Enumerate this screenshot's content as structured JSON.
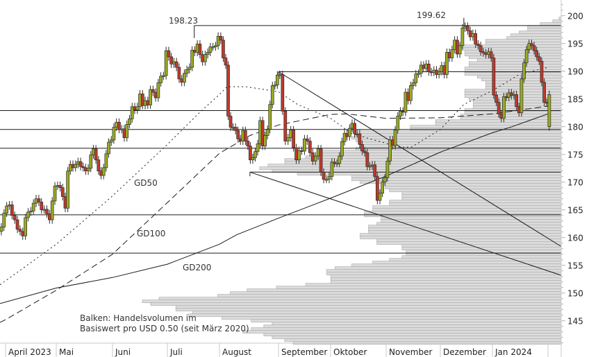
{
  "chart_data": {
    "type": "candlestick",
    "title": "",
    "y_axis": {
      "ticks": [
        145,
        150,
        155,
        160,
        165,
        170,
        175,
        180,
        185,
        190,
        195,
        200
      ],
      "tick_labels": [
        "145",
        "150",
        "155",
        "160",
        "165",
        "170",
        "175",
        "180",
        "185",
        "190",
        "195",
        "200"
      ],
      "range": [
        141,
        202.8
      ],
      "position": "right"
    },
    "x_axis": {
      "months": [
        {
          "label": "April 2023",
          "start": "2023-04-01"
        },
        {
          "label": "Mai",
          "start": "2023-05-01"
        },
        {
          "label": "Juni",
          "start": "2023-06-01"
        },
        {
          "label": "Juli",
          "start": "2023-07-01"
        },
        {
          "label": "August",
          "start": "2023-08-01"
        },
        {
          "label": "September",
          "start": "2023-09-01"
        },
        {
          "label": "Oktober",
          "start": "2023-10-01"
        },
        {
          "label": "November",
          "start": "2023-11-01"
        },
        {
          "label": "Dezember",
          "start": "2023-12-01"
        },
        {
          "label": "Jan 2024",
          "start": "2024-01-01"
        },
        {
          "label": "",
          "start": "2024-02-01"
        }
      ]
    },
    "candles_by_month": [
      {
        "month": "2023-04",
        "closes": [
          161.9,
          164.4,
          165.7,
          165.9,
          164.0,
          163.2,
          161.5,
          161.1,
          160.3,
          163.6,
          164.6,
          164.8,
          166.2,
          167.0,
          166.4,
          165.0,
          165.1,
          164.3,
          163.2,
          166.6,
          169.3
        ]
      },
      {
        "month": "2023-05",
        "closes": [
          169.4,
          169.0,
          167.4,
          165.3,
          172.0,
          173.2,
          172.6,
          173.2,
          173.7,
          172.8,
          172.6,
          172.0,
          172.5,
          174.9,
          176.0,
          174.0,
          172.0,
          171.2,
          172.6,
          175.1,
          177.2,
          177.6
        ]
      },
      {
        "month": "2023-06",
        "closes": [
          179.9,
          180.8,
          179.5,
          179.6,
          178.0,
          180.4,
          181.4,
          183.6,
          183.0,
          183.6,
          185.9,
          183.8,
          184.7,
          183.9,
          186.7,
          186.2,
          185.2,
          187.9,
          189.1,
          189.2,
          193.7
        ]
      },
      {
        "month": "2023-07",
        "closes": [
          192.6,
          191.3,
          191.7,
          190.7,
          188.6,
          188.0,
          189.6,
          190.3,
          190.7,
          193.8,
          193.4,
          194.9,
          193.0,
          191.7,
          193.0,
          193.4,
          194.4,
          194.4,
          194.6,
          196.3
        ]
      },
      {
        "month": "2023-08",
        "closes": [
          195.6,
          192.4,
          191.1,
          181.9,
          179.9,
          179.9,
          179.3,
          177.8,
          177.4,
          179.3,
          177.4,
          176.5,
          174.0,
          174.4,
          175.5,
          176.9,
          181.1,
          176.5,
          178.4,
          179.5,
          184.0,
          187.4,
          187.5,
          189.3
        ]
      },
      {
        "month": "2023-09",
        "closes": [
          189.4,
          182.8,
          177.4,
          178.0,
          179.4,
          176.2,
          174.0,
          175.7,
          175.6,
          177.8,
          177.4,
          175.3,
          173.8,
          174.7,
          176.0,
          171.8,
          170.5,
          170.5,
          171.0
        ]
      },
      {
        "month": "2023-10",
        "closes": [
          173.6,
          173.4,
          173.4,
          174.7,
          177.3,
          178.8,
          178.2,
          179.7,
          180.6,
          178.7,
          178.7,
          176.8,
          175.6,
          175.3,
          172.8,
          172.9,
          173.1,
          171.0,
          166.7,
          168.0,
          170.0,
          170.8
        ]
      },
      {
        "month": "2023-11",
        "closes": [
          173.8,
          177.6,
          176.6,
          179.4,
          181.9,
          182.8,
          182.6,
          186.2,
          184.7,
          187.4,
          187.9,
          189.5,
          189.6,
          191.1,
          190.5,
          191.3,
          189.9,
          189.8,
          190.2,
          189.4,
          189.9
        ]
      },
      {
        "month": "2023-12",
        "closes": [
          191.0,
          189.4,
          193.4,
          192.4,
          193.9,
          195.6,
          193.1,
          194.6,
          197.8,
          198.1,
          197.3,
          196.2,
          196.8,
          194.9,
          194.6,
          193.5,
          193.3,
          193.0,
          193.5,
          192.4
        ]
      },
      {
        "month": "2024-01",
        "closes": [
          185.7,
          184.4,
          182.3,
          181.5,
          185.4,
          185.3,
          186.1,
          185.6,
          185.8,
          183.6,
          182.5,
          188.6,
          191.5,
          193.9,
          195.0,
          194.6,
          193.7,
          192.6,
          191.8,
          188.0,
          184.4,
          184.3
        ]
      },
      {
        "month": "2024-02",
        "open": 180.0,
        "closes": [
          185.8
        ]
      }
    ],
    "moving_averages": [
      {
        "name": "GD50",
        "style": "dotted",
        "points": [
          [
            "2023-03-29",
            151.5
          ],
          [
            "2023-04-01",
            152.2
          ],
          [
            "2023-05-01",
            158.8
          ],
          [
            "2023-06-01",
            167.5
          ],
          [
            "2023-07-01",
            176.8
          ],
          [
            "2023-07-20",
            182.5
          ],
          [
            "2023-08-01",
            185.8
          ],
          [
            "2023-08-05",
            187.2
          ],
          [
            "2023-08-15",
            187.2
          ],
          [
            "2023-09-01",
            186.3
          ],
          [
            "2023-09-12",
            184.0
          ],
          [
            "2023-10-01",
            181.5
          ],
          [
            "2023-10-13",
            178.7
          ],
          [
            "2023-11-01",
            177.0
          ],
          [
            "2023-11-07",
            176.3
          ],
          [
            "2023-11-15",
            176.3
          ],
          [
            "2023-12-01",
            179.5
          ],
          [
            "2023-12-15",
            184.0
          ],
          [
            "2024-01-01",
            186.5
          ],
          [
            "2024-01-16",
            189.4
          ],
          [
            "2024-02-01",
            190.7
          ]
        ]
      },
      {
        "name": "GD100",
        "style": "dashed",
        "points": [
          [
            "2023-03-29",
            144.7
          ],
          [
            "2023-04-01",
            145.2
          ],
          [
            "2023-05-01",
            150.5
          ],
          [
            "2023-06-01",
            157.0
          ],
          [
            "2023-07-01",
            166.3
          ],
          [
            "2023-08-01",
            175.2
          ],
          [
            "2023-08-17",
            178.4
          ],
          [
            "2023-09-01",
            180.3
          ],
          [
            "2023-10-01",
            182.2
          ],
          [
            "2023-10-10",
            182.3
          ],
          [
            "2023-11-01",
            181.5
          ],
          [
            "2023-12-01",
            181.6
          ],
          [
            "2024-01-01",
            182.3
          ],
          [
            "2024-02-01",
            183.7
          ]
        ]
      },
      {
        "name": "GD200",
        "style": "solid",
        "points": [
          [
            "2023-03-29",
            148.1
          ],
          [
            "2023-05-01",
            150.9
          ],
          [
            "2023-06-01",
            152.8
          ],
          [
            "2023-07-01",
            155.2
          ],
          [
            "2023-08-01",
            158.8
          ],
          [
            "2023-08-10",
            160.5
          ],
          [
            "2023-09-01",
            163.5
          ],
          [
            "2023-09-16",
            165.3
          ],
          [
            "2023-10-01",
            167.1
          ],
          [
            "2023-11-01",
            171.1
          ],
          [
            "2023-12-01",
            175.4
          ],
          [
            "2024-01-01",
            178.9
          ],
          [
            "2024-01-12",
            180.0
          ],
          [
            "2024-02-01",
            182.3
          ]
        ]
      }
    ],
    "ma_labels": [
      {
        "text": "GD50"
      },
      {
        "text": "GD100"
      },
      {
        "text": "GD200"
      }
    ],
    "horizontal_levels": [
      {
        "price": 198.23,
        "from": "2023-07-17",
        "label": "198.23"
      },
      {
        "price": 189.9,
        "from": "2023-09-01"
      },
      {
        "price": 182.9,
        "from": "start"
      },
      {
        "price": 179.5,
        "from": "start"
      },
      {
        "price": 176.1,
        "from": "start"
      },
      {
        "price": 171.8,
        "from": "2023-08-17"
      },
      {
        "price": 164.1,
        "from": "start"
      },
      {
        "price": 157.2,
        "from": "start"
      }
    ],
    "high_marker": {
      "date": "2023-12-15",
      "price": 199.62,
      "label": "199.62"
    },
    "trendlines": [
      {
        "from": [
          "2023-09-01",
          189.9
        ],
        "to": [
          "2024-02-08",
          158.4
        ]
      },
      {
        "from": [
          "2023-08-17",
          171.8
        ],
        "to": [
          "2024-02-08",
          153.2
        ]
      }
    ],
    "volume_profile": {
      "price_top": 199.5,
      "price_step": 0.5,
      "relative_volume": [
        0.5,
        2,
        5,
        8,
        8,
        10,
        12,
        13,
        18,
        18,
        25,
        25,
        23,
        23,
        22,
        20,
        22,
        22,
        23,
        23,
        23,
        20,
        19,
        18,
        18,
        18,
        23,
        23,
        23,
        22,
        21,
        21,
        21,
        23,
        23,
        24,
        24,
        30,
        30,
        36,
        36,
        49,
        49,
        50,
        49,
        48,
        48,
        49,
        57,
        57,
        61,
        66,
        66,
        70,
        72,
        69,
        63,
        50,
        50,
        48,
        42,
        42,
        41,
        38,
        38,
        38,
        41,
        41,
        45,
        45,
        47,
        47,
        43,
        43,
        44,
        46,
        46,
        46,
        48,
        48,
        44,
        44,
        38,
        38,
        37,
        37,
        38,
        41,
        45,
        50,
        54,
        56,
        56,
        55,
        55,
        55,
        61,
        68,
        75,
        79,
        82,
        96,
        100,
        98,
        92,
        92,
        88,
        89,
        81,
        74,
        69,
        71,
        74,
        76,
        71,
        69,
        66,
        64
      ]
    },
    "annotation": {
      "line1": "Balken: Handelsvolumen im",
      "line2": "Basiswert pro USD 0.50 (seit März 2020)"
    },
    "colors": {
      "up": "#9aab1f",
      "down": "#c0392b",
      "outline": "#2b2b2b",
      "volume_fill": "#dcdcdc",
      "volume_stroke": "#b5b5b5",
      "lines": "#1a1a1a"
    }
  }
}
